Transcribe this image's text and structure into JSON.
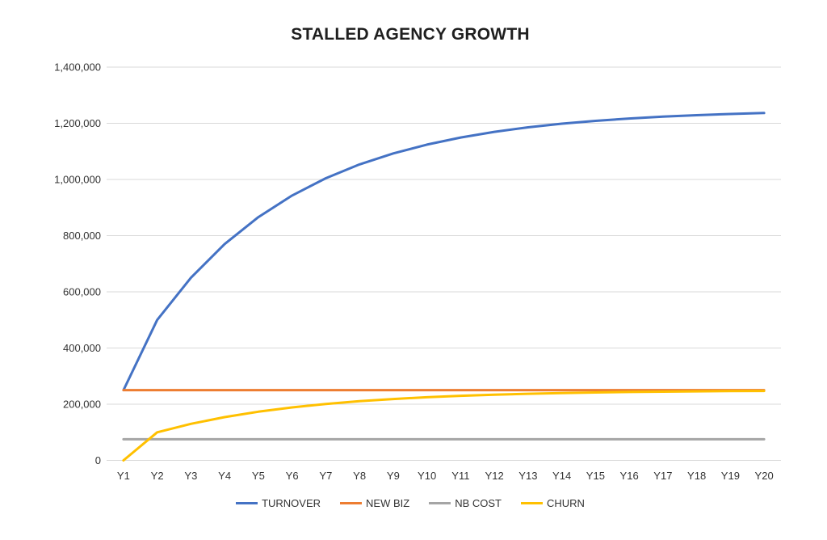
{
  "chart_data": {
    "type": "line",
    "title": "STALLED AGENCY GROWTH",
    "xlabel": "",
    "ylabel": "",
    "x_categories": [
      "Y1",
      "Y2",
      "Y3",
      "Y4",
      "Y5",
      "Y6",
      "Y7",
      "Y8",
      "Y9",
      "Y10",
      "Y11",
      "Y12",
      "Y13",
      "Y14",
      "Y15",
      "Y16",
      "Y17",
      "Y18",
      "Y19",
      "Y20"
    ],
    "ylim": [
      0,
      1400000
    ],
    "y_tick_step": 200000,
    "y_tick_labels": [
      "0",
      "200,000",
      "400,000",
      "600,000",
      "800,000",
      "1,000,000",
      "1,200,000",
      "1,400,000"
    ],
    "grid": "horizontal",
    "legend_position": "bottom",
    "series": [
      {
        "name": "TURNOVER",
        "color": "#4472C4",
        "values": [
          250000,
          500000,
          650000,
          770000,
          866000,
          942800,
          1004240,
          1053392,
          1092714,
          1124171,
          1149337,
          1169470,
          1185576,
          1198461,
          1208769,
          1217015,
          1223612,
          1228890,
          1233112,
          1236489
        ]
      },
      {
        "name": "NEW BIZ",
        "color": "#ED7D31",
        "values": [
          250000,
          250000,
          250000,
          250000,
          250000,
          250000,
          250000,
          250000,
          250000,
          250000,
          250000,
          250000,
          250000,
          250000,
          250000,
          250000,
          250000,
          250000,
          250000,
          250000
        ]
      },
      {
        "name": "NB COST",
        "color": "#A5A5A5",
        "values": [
          75000,
          75000,
          75000,
          75000,
          75000,
          75000,
          75000,
          75000,
          75000,
          75000,
          75000,
          75000,
          75000,
          75000,
          75000,
          75000,
          75000,
          75000,
          75000,
          75000
        ]
      },
      {
        "name": "CHURN",
        "color": "#FFC000",
        "values": [
          0,
          100000,
          130000,
          154000,
          173200,
          188560,
          200848,
          210678,
          218543,
          224834,
          229867,
          233894,
          237115,
          239692,
          241754,
          243403,
          244722,
          245778,
          246622,
          247298
        ]
      }
    ],
    "colors": {
      "title_text": "#1f1f1f",
      "axis_text": "#333333",
      "gridline": "#D9D9D9",
      "background": "#FFFFFF"
    }
  }
}
